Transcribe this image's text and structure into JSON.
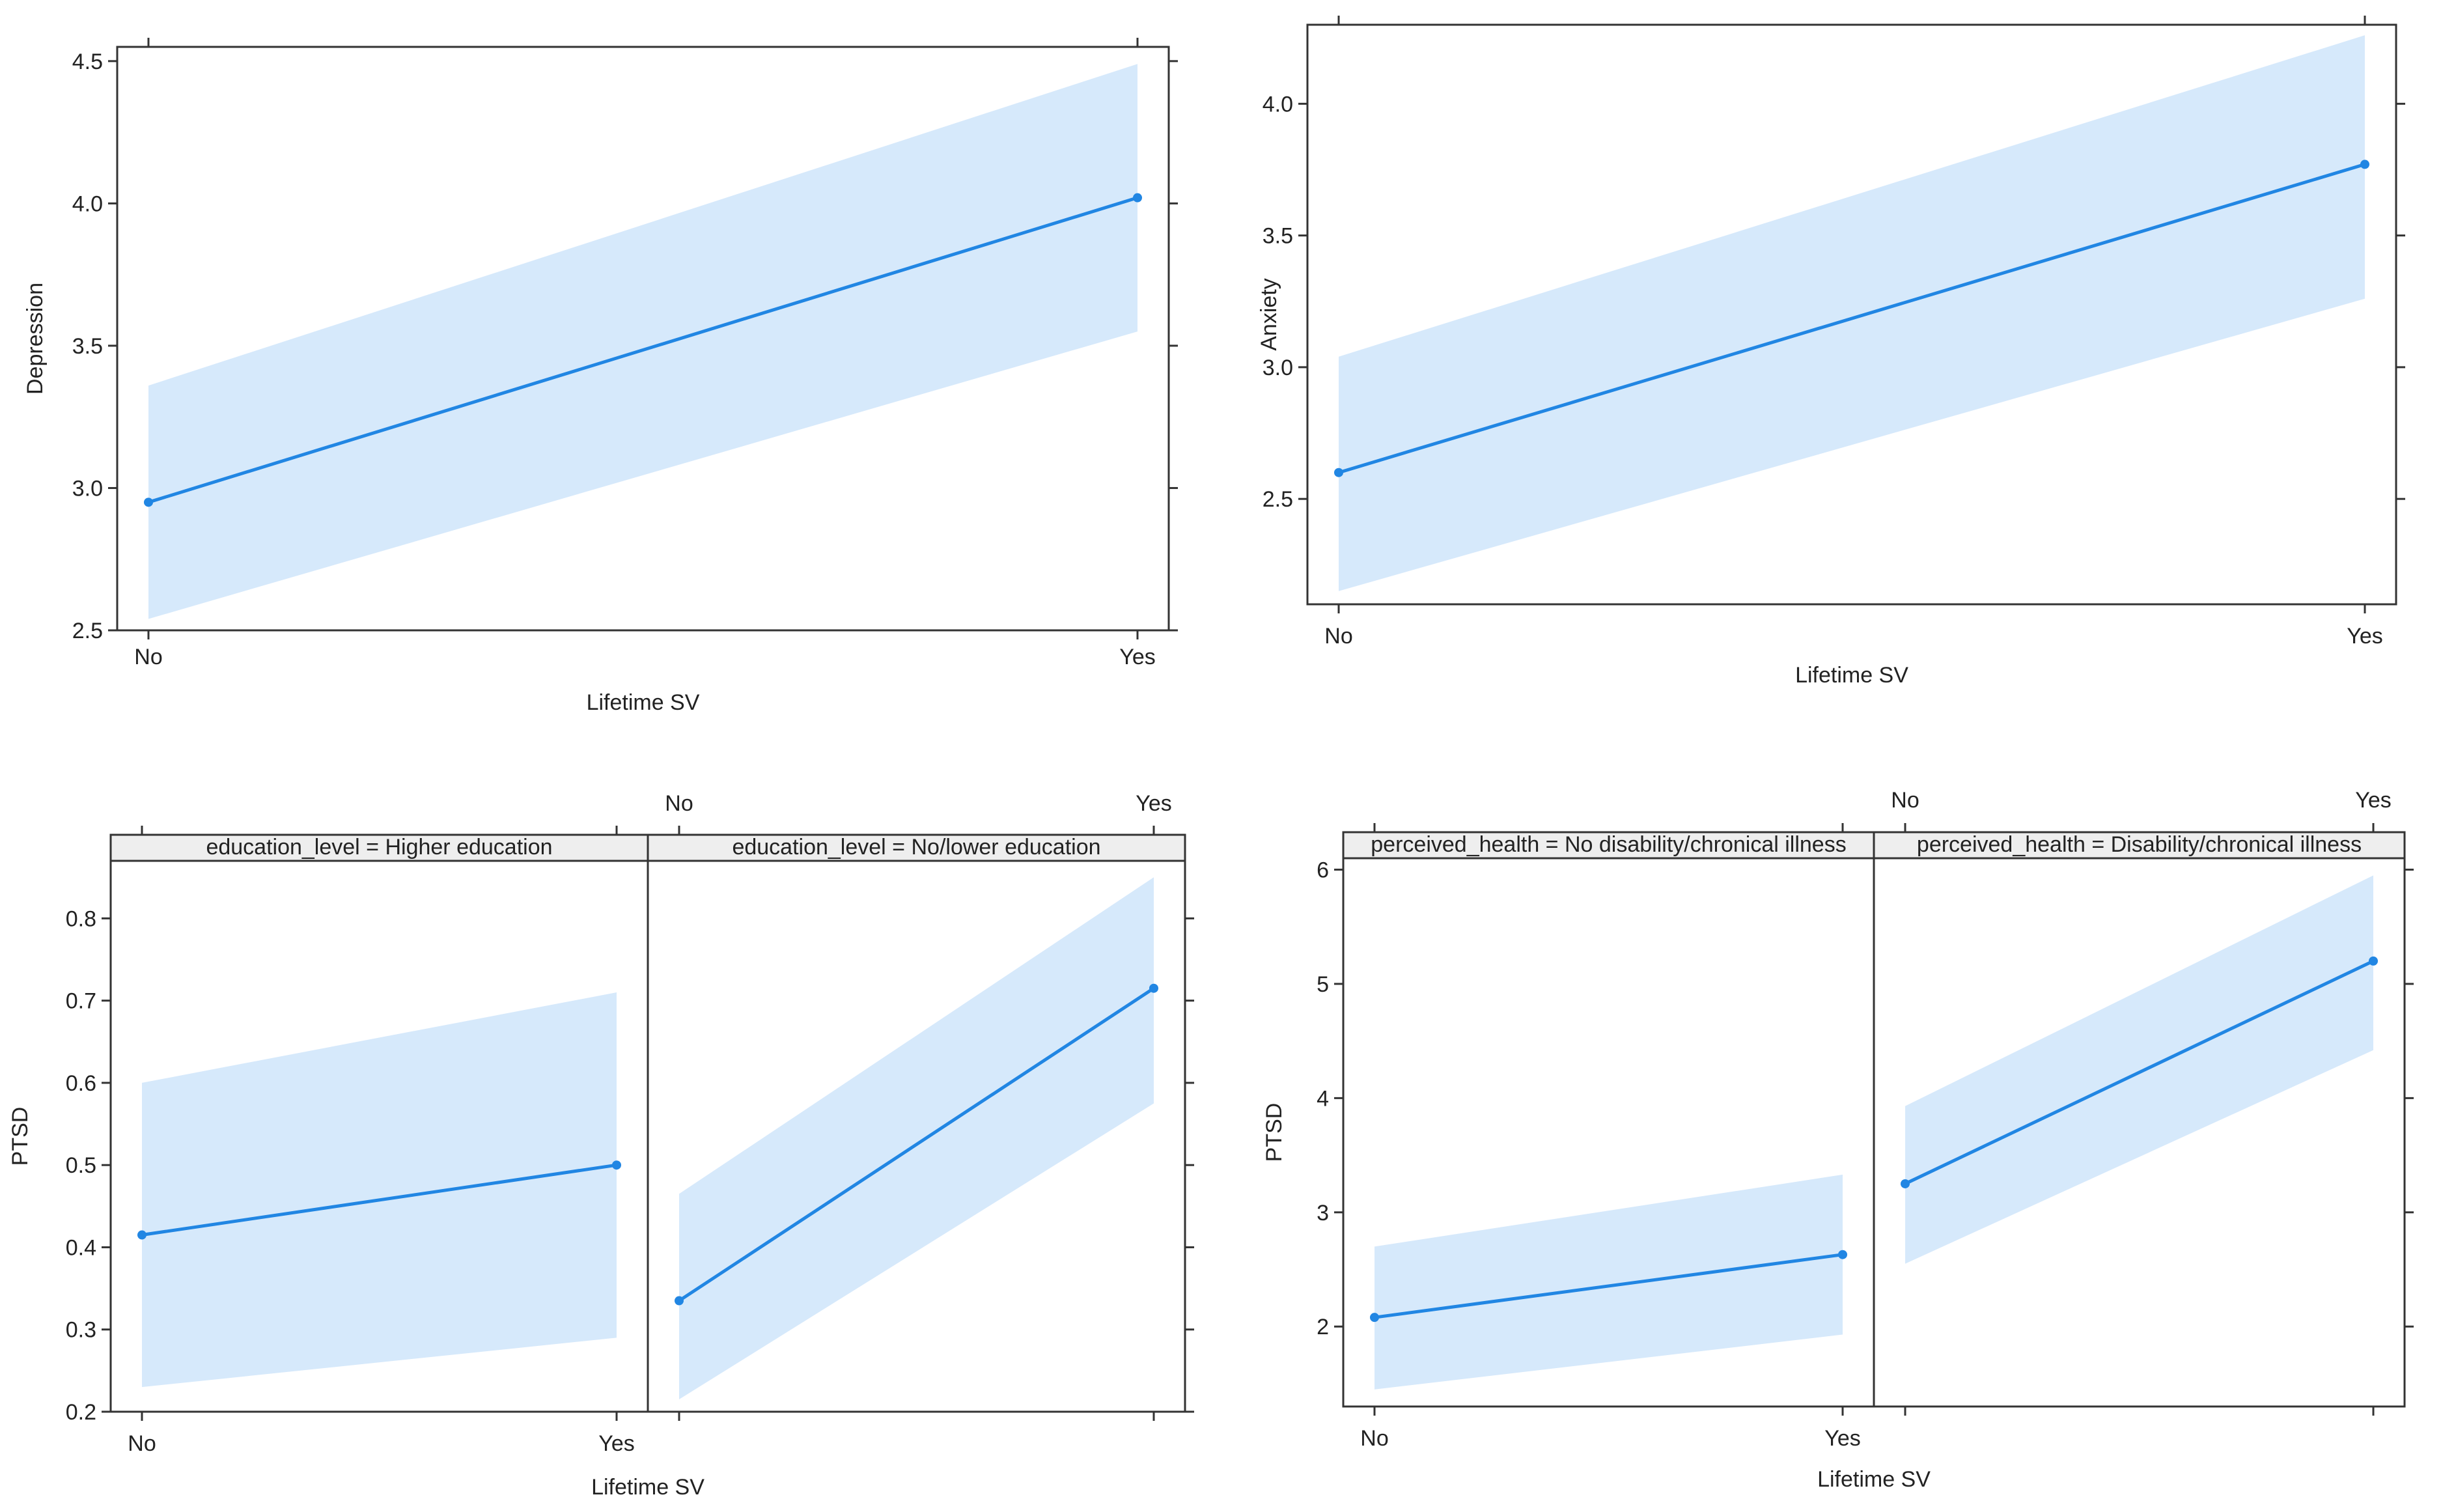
{
  "colors": {
    "line": "#2186e3",
    "band": "#d6e9fb",
    "strip": "#eeeeee",
    "frame": "#333333"
  },
  "chart_data": [
    {
      "type": "line",
      "title": "",
      "xlabel": "Lifetime SV",
      "ylabel": "Depression",
      "categories": [
        "No",
        "Yes"
      ],
      "yticks": [
        "2.5",
        "3.0",
        "3.5",
        "4.0",
        "4.5"
      ],
      "ylim": [
        2.5,
        4.55
      ],
      "panels": [
        {
          "strip": null,
          "values": [
            2.95,
            4.02
          ],
          "lower": [
            2.54,
            3.55
          ],
          "upper": [
            3.36,
            4.49
          ]
        }
      ]
    },
    {
      "type": "line",
      "title": "",
      "xlabel": "Lifetime SV",
      "ylabel": "Anxiety",
      "categories": [
        "No",
        "Yes"
      ],
      "yticks": [
        "2.5",
        "3.0",
        "3.5",
        "4.0"
      ],
      "ylim": [
        2.1,
        4.3
      ],
      "panels": [
        {
          "strip": null,
          "values": [
            2.6,
            3.77
          ],
          "lower": [
            2.15,
            3.26
          ],
          "upper": [
            3.04,
            4.26
          ]
        }
      ]
    },
    {
      "type": "line",
      "title": "",
      "xlabel": "Lifetime SV",
      "ylabel": "PTSD",
      "categories": [
        "No",
        "Yes"
      ],
      "yticks": [
        "0.2",
        "0.3",
        "0.4",
        "0.5",
        "0.6",
        "0.7",
        "0.8"
      ],
      "ylim": [
        0.2,
        0.87
      ],
      "panels": [
        {
          "strip": "education_level = Higher education",
          "values": [
            0.415,
            0.5
          ],
          "lower": [
            0.23,
            0.29
          ],
          "upper": [
            0.6,
            0.71
          ]
        },
        {
          "strip": "education_level = No/lower education",
          "values": [
            0.335,
            0.715
          ],
          "lower": [
            0.215,
            0.575
          ],
          "upper": [
            0.465,
            0.85
          ]
        }
      ]
    },
    {
      "type": "line",
      "title": "",
      "xlabel": "Lifetime SV",
      "ylabel": "PTSD",
      "categories": [
        "No",
        "Yes"
      ],
      "yticks": [
        "2",
        "3",
        "4",
        "5",
        "6"
      ],
      "ylim": [
        1.3,
        6.1
      ],
      "panels": [
        {
          "strip": "perceived_health = No disability/chronical illness",
          "values": [
            2.08,
            2.63
          ],
          "lower": [
            1.45,
            1.93
          ],
          "upper": [
            2.7,
            3.33
          ]
        },
        {
          "strip": "perceived_health = Disability/chronical illness",
          "values": [
            3.25,
            5.2
          ],
          "lower": [
            2.55,
            4.42
          ],
          "upper": [
            3.93,
            5.95
          ]
        }
      ]
    }
  ]
}
